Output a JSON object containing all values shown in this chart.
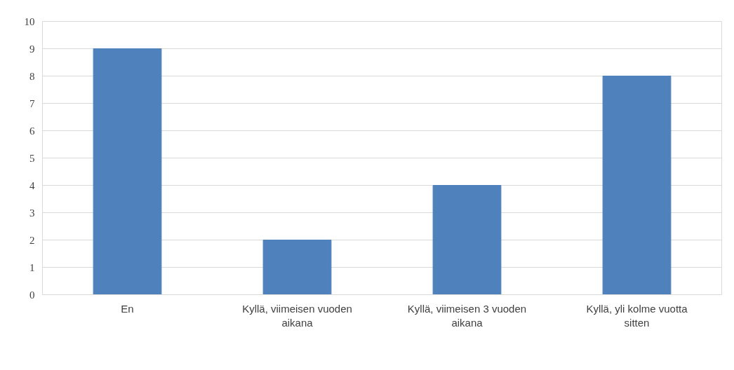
{
  "chart_data": {
    "type": "bar",
    "categories": [
      "En",
      "Kyllä, viimeisen vuoden aikana",
      "Kyllä, viimeisen 3 vuoden aikana",
      "Kyllä, yli kolme vuotta sitten"
    ],
    "values": [
      9,
      2,
      4,
      8
    ],
    "color": "#4f81bd",
    "ylim": [
      0,
      10
    ],
    "yticks": [
      0,
      1,
      2,
      3,
      4,
      5,
      6,
      7,
      8,
      9,
      10
    ],
    "grid": "y"
  }
}
